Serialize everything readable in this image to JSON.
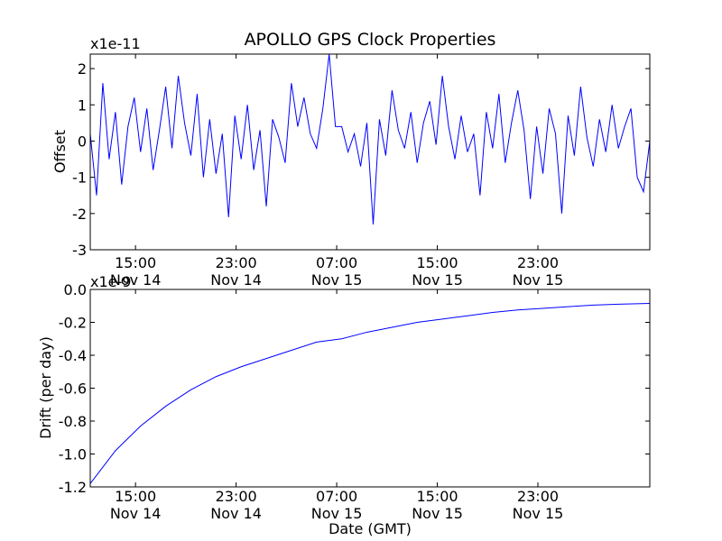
{
  "chart_data": [
    {
      "type": "line",
      "title": "APOLLO GPS Clock Properties",
      "xlabel": "",
      "ylabel": "Offset",
      "y_scale_label": "x1e-11",
      "xlim_hours": [
        0,
        44.5
      ],
      "ylim": [
        -3,
        2.4
      ],
      "yticks": [
        2,
        1,
        0,
        -1,
        -2,
        -3
      ],
      "xticks": [
        {
          "hour": 3.6,
          "time": "15:00",
          "date": "Nov 14"
        },
        {
          "hour": 11.6,
          "time": "23:00",
          "date": "Nov 14"
        },
        {
          "hour": 19.6,
          "time": "07:00",
          "date": "Nov 15"
        },
        {
          "hour": 27.6,
          "time": "15:00",
          "date": "Nov 15"
        },
        {
          "hour": 35.6,
          "time": "23:00",
          "date": "Nov 15"
        }
      ],
      "series": [
        {
          "name": "offset",
          "color": "#0000ff",
          "x": [
            0.0,
            0.5,
            1.0,
            1.5,
            2.0,
            2.5,
            3.0,
            3.5,
            4.0,
            4.5,
            5.0,
            5.5,
            6.0,
            6.5,
            7.0,
            7.5,
            8.0,
            8.5,
            9.0,
            9.5,
            10.0,
            10.5,
            11.0,
            11.5,
            12.0,
            12.5,
            13.0,
            13.5,
            14.0,
            14.5,
            15.0,
            15.5,
            16.0,
            16.5,
            17.0,
            17.5,
            18.0,
            18.5,
            19.0,
            19.5,
            20.0,
            20.5,
            21.0,
            21.5,
            22.0,
            22.5,
            23.0,
            23.5,
            24.0,
            24.5,
            25.0,
            25.5,
            26.0,
            26.5,
            27.0,
            27.5,
            28.0,
            28.5,
            29.0,
            29.5,
            30.0,
            30.5,
            31.0,
            31.5,
            32.0,
            32.5,
            33.0,
            33.5,
            34.0,
            34.5,
            35.0,
            35.5,
            36.0,
            36.5,
            37.0,
            37.5,
            38.0,
            38.5,
            39.0,
            39.5,
            40.0,
            40.5,
            41.0,
            41.5,
            42.0,
            42.5,
            43.0,
            43.5,
            44.0,
            44.5
          ],
          "values": [
            0.2,
            -1.5,
            1.6,
            -0.5,
            0.8,
            -1.2,
            0.4,
            1.2,
            -0.3,
            0.9,
            -0.8,
            0.3,
            1.5,
            -0.2,
            1.8,
            0.5,
            -0.4,
            1.3,
            -1.0,
            0.6,
            -0.9,
            0.2,
            -2.1,
            0.7,
            -0.5,
            1.0,
            -0.8,
            0.3,
            -1.8,
            0.6,
            0.1,
            -0.6,
            1.6,
            0.4,
            1.2,
            0.2,
            -0.2,
            0.9,
            2.4,
            0.4,
            0.4,
            -0.3,
            0.2,
            -0.7,
            0.5,
            -2.3,
            0.6,
            -0.4,
            1.4,
            0.3,
            -0.2,
            0.8,
            -0.6,
            0.5,
            1.1,
            -0.1,
            1.8,
            0.4,
            -0.5,
            0.7,
            -0.3,
            0.2,
            -1.5,
            0.8,
            -0.2,
            1.3,
            -0.6,
            0.5,
            1.4,
            0.3,
            -1.6,
            0.4,
            -0.9,
            0.9,
            0.2,
            -2.0,
            0.7,
            -0.4,
            1.5,
            0.1,
            -0.7,
            0.6,
            -0.3,
            1.0,
            -0.2,
            0.4,
            0.9,
            -1.0,
            -1.4,
            0.0
          ]
        }
      ]
    },
    {
      "type": "line",
      "title": "",
      "xlabel": "Date (GMT)",
      "ylabel": "Drift (per day)",
      "y_scale_label": "x1e-9",
      "xlim_hours": [
        0,
        44.5
      ],
      "ylim": [
        -1.2,
        0.0
      ],
      "yticks": [
        "0.0",
        "-0.2",
        "-0.4",
        "-0.6",
        "-0.8",
        "-1.0",
        "-1.2"
      ],
      "xticks": [
        {
          "hour": 3.6,
          "time": "15:00",
          "date": "Nov 14"
        },
        {
          "hour": 11.6,
          "time": "23:00",
          "date": "Nov 14"
        },
        {
          "hour": 19.6,
          "time": "07:00",
          "date": "Nov 15"
        },
        {
          "hour": 27.6,
          "time": "15:00",
          "date": "Nov 15"
        },
        {
          "hour": 35.6,
          "time": "23:00",
          "date": "Nov 15"
        }
      ],
      "series": [
        {
          "name": "drift",
          "color": "#0000ff",
          "x": [
            0,
            2,
            4,
            6,
            8,
            10,
            12,
            14,
            16,
            18,
            20,
            22,
            24,
            26,
            28,
            30,
            32,
            34,
            36,
            38,
            40,
            42,
            44.5
          ],
          "values": [
            -1.18,
            -0.98,
            -0.83,
            -0.71,
            -0.61,
            -0.53,
            -0.47,
            -0.42,
            -0.37,
            -0.32,
            -0.3,
            -0.26,
            -0.23,
            -0.2,
            -0.18,
            -0.16,
            -0.14,
            -0.125,
            -0.115,
            -0.105,
            -0.095,
            -0.09,
            -0.085
          ]
        }
      ]
    }
  ]
}
